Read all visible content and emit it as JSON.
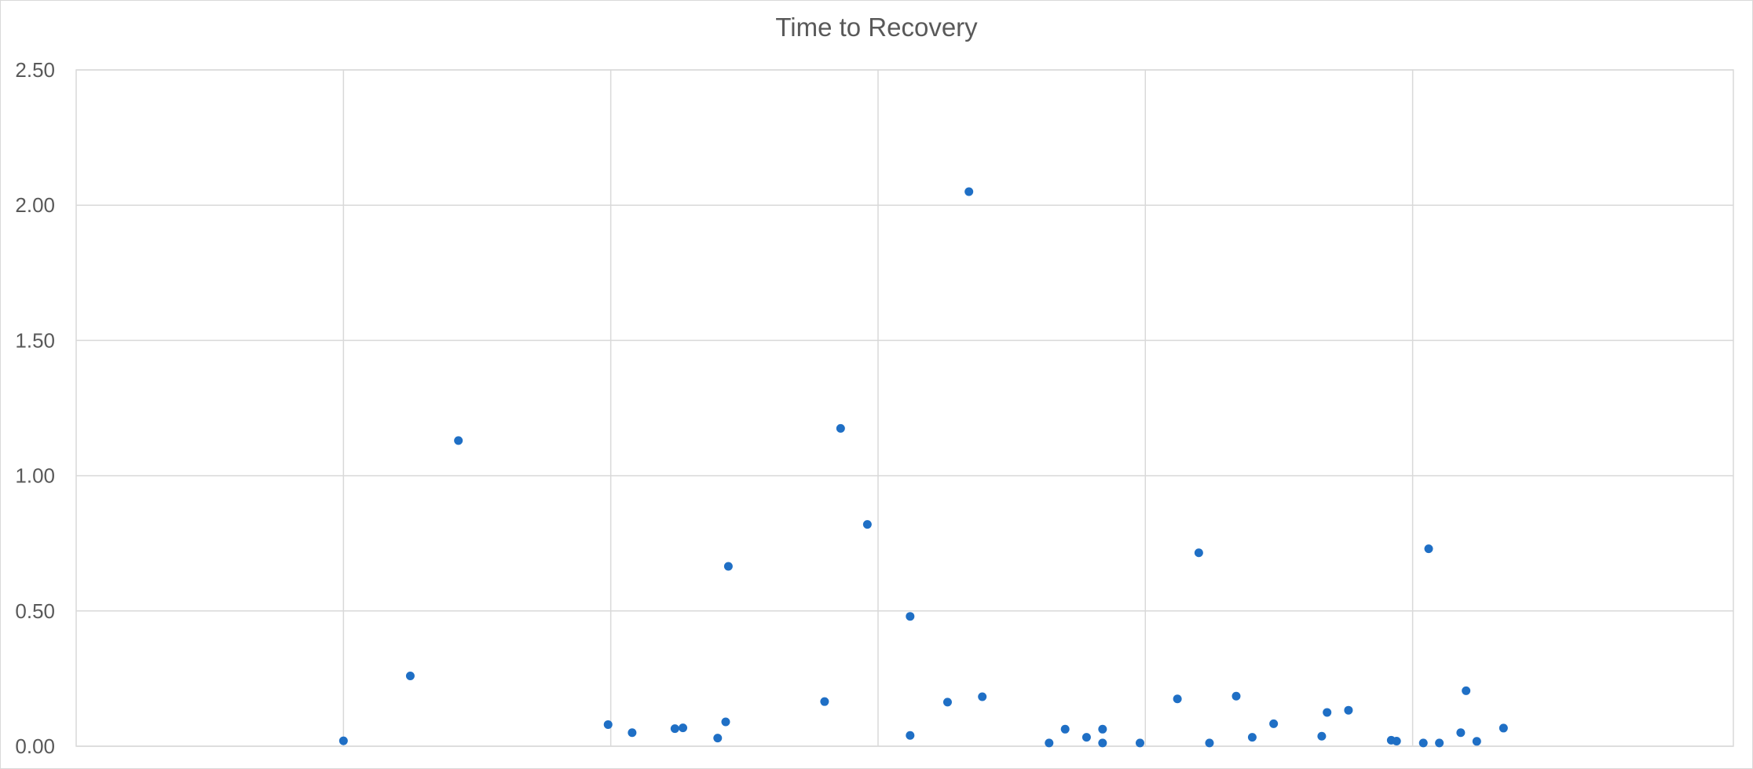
{
  "chart_data": {
    "type": "scatter",
    "title": "Time to Recovery",
    "xlabel": "",
    "ylabel": "",
    "xlim": [
      0,
      6.2
    ],
    "ylim": [
      0,
      2.5
    ],
    "yticks": [
      "0.00",
      "0.50",
      "1.00",
      "1.50",
      "2.00",
      "2.50"
    ],
    "ytick_values": [
      0,
      0.5,
      1.0,
      1.5,
      2.0,
      2.5
    ],
    "xgrid": [
      1,
      2,
      3,
      4,
      5
    ],
    "grid": true,
    "marker_color": "#1f6fc5",
    "gridline_color": "#d9d9d9",
    "series": [
      {
        "points": [
          [
            1.0,
            0.02
          ],
          [
            1.25,
            0.26
          ],
          [
            1.43,
            1.13
          ],
          [
            1.99,
            0.08
          ],
          [
            2.08,
            0.05
          ],
          [
            2.24,
            0.065
          ],
          [
            2.27,
            0.068
          ],
          [
            2.4,
            0.03
          ],
          [
            2.43,
            0.09
          ],
          [
            2.44,
            0.665
          ],
          [
            2.8,
            0.165
          ],
          [
            2.86,
            1.175
          ],
          [
            2.96,
            0.82
          ],
          [
            3.12,
            0.48
          ],
          [
            3.12,
            0.04
          ],
          [
            3.26,
            0.163
          ],
          [
            3.34,
            2.05
          ],
          [
            3.39,
            0.183
          ],
          [
            3.64,
            0.012
          ],
          [
            3.7,
            0.063
          ],
          [
            3.78,
            0.033
          ],
          [
            3.84,
            0.063
          ],
          [
            3.84,
            0.012
          ],
          [
            3.98,
            0.012
          ],
          [
            4.12,
            0.175
          ],
          [
            4.2,
            0.715
          ],
          [
            4.24,
            0.012
          ],
          [
            4.34,
            0.185
          ],
          [
            4.4,
            0.033
          ],
          [
            4.48,
            0.083
          ],
          [
            4.66,
            0.037
          ],
          [
            4.68,
            0.125
          ],
          [
            4.76,
            0.133
          ],
          [
            4.92,
            0.022
          ],
          [
            4.94,
            0.019
          ],
          [
            5.04,
            0.012
          ],
          [
            5.06,
            0.73
          ],
          [
            5.1,
            0.012
          ],
          [
            5.18,
            0.05
          ],
          [
            5.2,
            0.205
          ],
          [
            5.24,
            0.018
          ],
          [
            5.34,
            0.067
          ]
        ]
      }
    ]
  }
}
